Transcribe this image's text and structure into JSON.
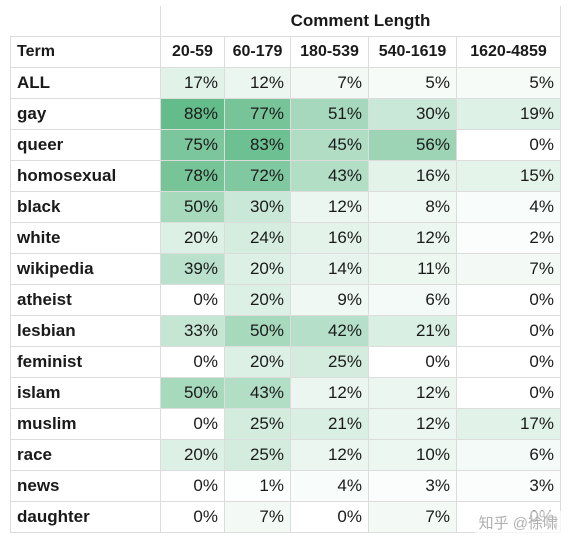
{
  "header": {
    "group_label": "Comment Length",
    "term_label": "Term"
  },
  "columns": [
    "20-59",
    "60-179",
    "180-539",
    "540-1619",
    "1620-4859"
  ],
  "heat_color_max": "#4fb37b",
  "rows": [
    {
      "term": "ALL",
      "values": [
        "17%",
        "12%",
        "7%",
        "5%",
        "5%"
      ]
    },
    {
      "term": "gay",
      "values": [
        "88%",
        "77%",
        "51%",
        "30%",
        "19%"
      ]
    },
    {
      "term": "queer",
      "values": [
        "75%",
        "83%",
        "45%",
        "56%",
        "0%"
      ]
    },
    {
      "term": "homosexual",
      "values": [
        "78%",
        "72%",
        "43%",
        "16%",
        "15%"
      ]
    },
    {
      "term": "black",
      "values": [
        "50%",
        "30%",
        "12%",
        "8%",
        "4%"
      ]
    },
    {
      "term": "white",
      "values": [
        "20%",
        "24%",
        "16%",
        "12%",
        "2%"
      ]
    },
    {
      "term": "wikipedia",
      "values": [
        "39%",
        "20%",
        "14%",
        "11%",
        "7%"
      ]
    },
    {
      "term": "atheist",
      "values": [
        "0%",
        "20%",
        "9%",
        "6%",
        "0%"
      ]
    },
    {
      "term": "lesbian",
      "values": [
        "33%",
        "50%",
        "42%",
        "21%",
        "0%"
      ]
    },
    {
      "term": "feminist",
      "values": [
        "0%",
        "20%",
        "25%",
        "0%",
        "0%"
      ]
    },
    {
      "term": "islam",
      "values": [
        "50%",
        "43%",
        "12%",
        "12%",
        "0%"
      ]
    },
    {
      "term": "muslim",
      "values": [
        "0%",
        "25%",
        "21%",
        "12%",
        "17%"
      ]
    },
    {
      "term": "race",
      "values": [
        "20%",
        "25%",
        "12%",
        "10%",
        "6%"
      ]
    },
    {
      "term": "news",
      "values": [
        "0%",
        "1%",
        "4%",
        "3%",
        "3%"
      ]
    },
    {
      "term": "daughter",
      "values": [
        "0%",
        "7%",
        "0%",
        "7%",
        "0%"
      ]
    }
  ],
  "watermark": "知乎 @徐啸"
}
